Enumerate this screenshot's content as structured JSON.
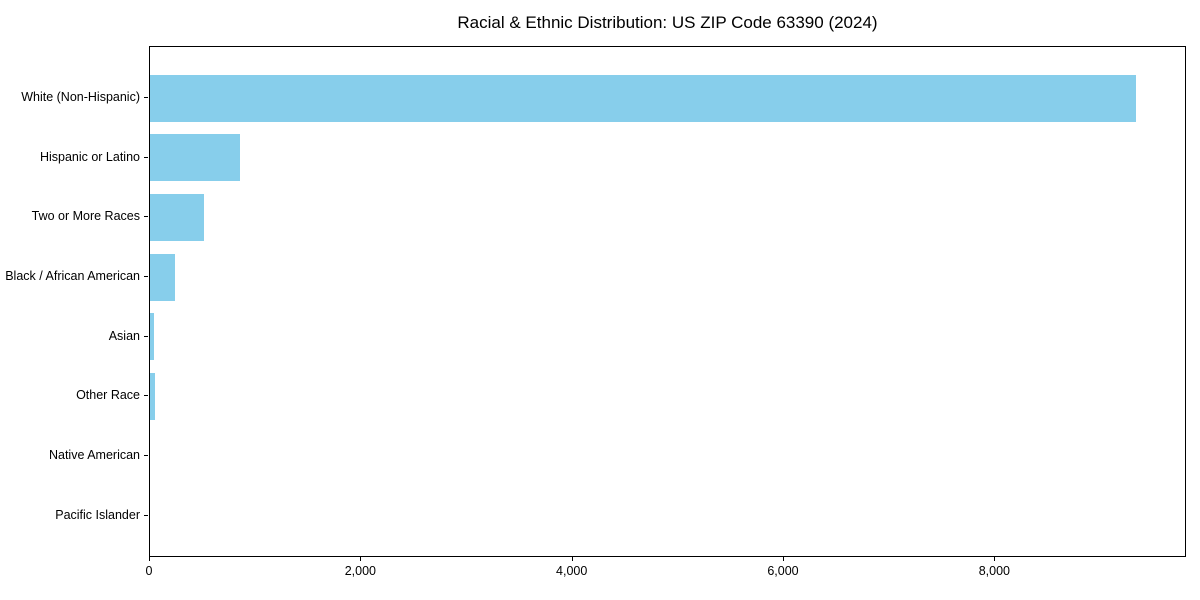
{
  "chart_data": {
    "type": "bar",
    "orientation": "horizontal",
    "title": "Racial & Ethnic Distribution: US ZIP Code 63390 (2024)",
    "categories": [
      "White (Non-Hispanic)",
      "Hispanic or Latino",
      "Two or More Races",
      "Black / African American",
      "Asian",
      "Other Race",
      "Native American",
      "Pacific Islander"
    ],
    "values": [
      9330,
      855,
      510,
      235,
      35,
      45,
      0,
      0
    ],
    "xlabel": "",
    "ylabel": "",
    "xlim": [
      0,
      9795
    ],
    "xticks": [
      0,
      2000,
      4000,
      6000,
      8000
    ],
    "xtick_labels": [
      "0",
      "2,000",
      "4,000",
      "6,000",
      "8,000"
    ],
    "bar_color": "#87CEEB",
    "grid": false,
    "legend_position": "none",
    "background_color": "#ffffff"
  }
}
